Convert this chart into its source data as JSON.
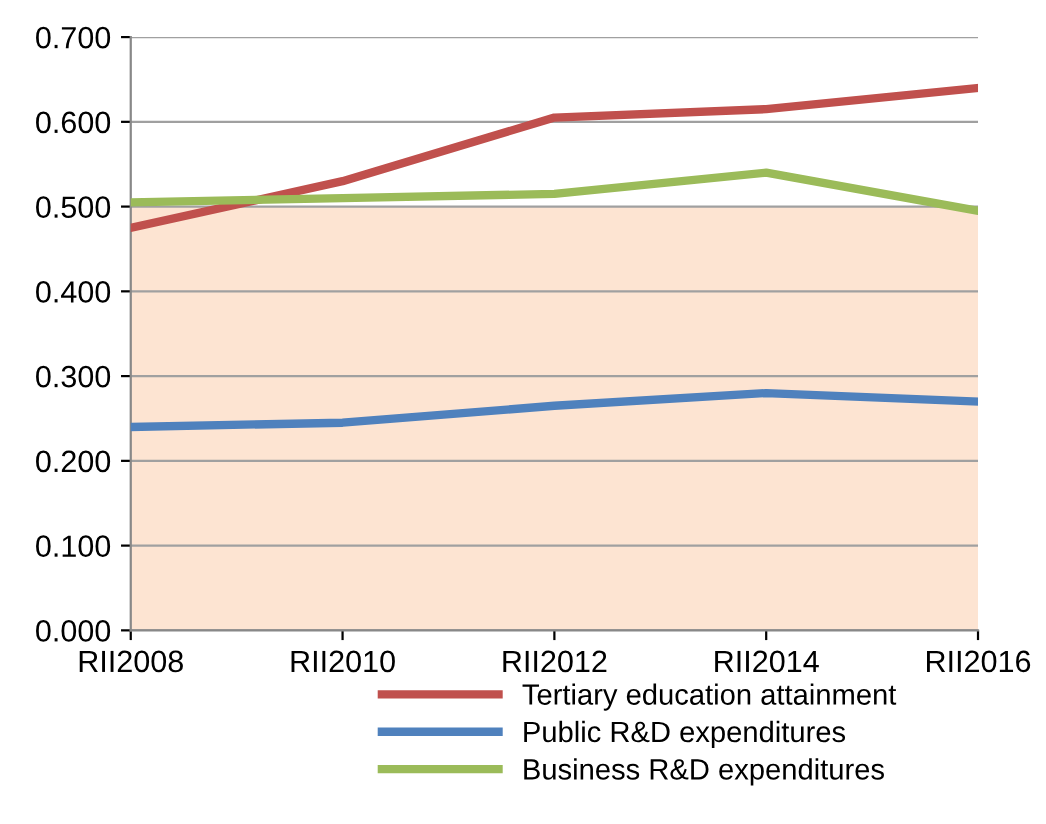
{
  "chart_data": {
    "type": "line",
    "categories": [
      "RII2008",
      "RII2010",
      "RII2012",
      "RII2014",
      "RII2016"
    ],
    "series": [
      {
        "name": "Tertiary education attainment",
        "color": "#c0504d",
        "values": [
          0.475,
          0.53,
          0.605,
          0.615,
          0.64
        ]
      },
      {
        "name": "Public R&D expenditures",
        "color": "#4f81bd",
        "values": [
          0.24,
          0.245,
          0.265,
          0.28,
          0.27
        ]
      },
      {
        "name": "Business R&D expenditures",
        "color": "#9bbb59",
        "values": [
          0.505,
          0.51,
          0.515,
          0.54,
          0.495
        ]
      }
    ],
    "ylim": [
      0,
      0.7
    ],
    "yticks": [
      {
        "value": 0,
        "label": "0.000"
      },
      {
        "value": 0.1,
        "label": "0.100"
      },
      {
        "value": 0.2,
        "label": "0.200"
      },
      {
        "value": 0.3,
        "label": "0.300"
      },
      {
        "value": 0.4,
        "label": "0.400"
      },
      {
        "value": 0.5,
        "label": "0.500"
      },
      {
        "value": 0.6,
        "label": "0.600"
      },
      {
        "value": 0.7,
        "label": "0.700"
      }
    ],
    "bands": [
      {
        "axis": "y",
        "from": 0,
        "to": 0.5,
        "color": "#fde4d2"
      }
    ],
    "grid": "y",
    "legend": "bottom",
    "marker": "none",
    "line_style": "solid"
  }
}
